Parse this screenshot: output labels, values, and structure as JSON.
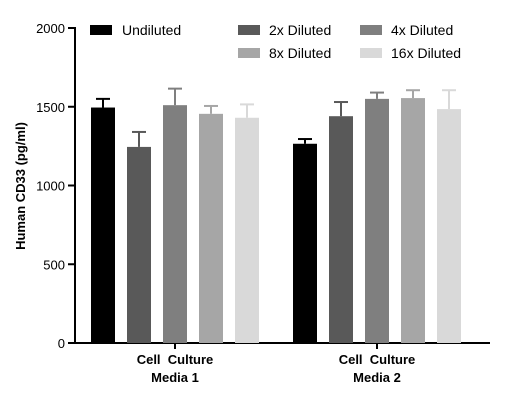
{
  "chart_data": {
    "type": "bar",
    "ylabel": "Human CD33 (pg/ml)",
    "ylim": [
      0,
      2000
    ],
    "yticks": [
      0,
      500,
      1000,
      1500,
      2000
    ],
    "grid": false,
    "legend_position": "top",
    "categories": [
      [
        "Cell  Culture",
        "Media 1"
      ],
      [
        "Cell  Culture",
        "Media 2"
      ]
    ],
    "series": [
      {
        "name": "Undiluted",
        "color": "#000000",
        "values": [
          1495,
          1265
        ],
        "errors": [
          55,
          30
        ]
      },
      {
        "name": "2x Diluted",
        "color": "#595959",
        "values": [
          1245,
          1440
        ],
        "errors": [
          95,
          90
        ]
      },
      {
        "name": "4x Diluted",
        "color": "#7f7f7f",
        "values": [
          1510,
          1550
        ],
        "errors": [
          105,
          40
        ]
      },
      {
        "name": "8x Diluted",
        "color": "#a6a6a6",
        "values": [
          1455,
          1555
        ],
        "errors": [
          50,
          50
        ]
      },
      {
        "name": "16x Diluted",
        "color": "#d9d9d9",
        "values": [
          1430,
          1485
        ],
        "errors": [
          85,
          120
        ]
      }
    ]
  }
}
